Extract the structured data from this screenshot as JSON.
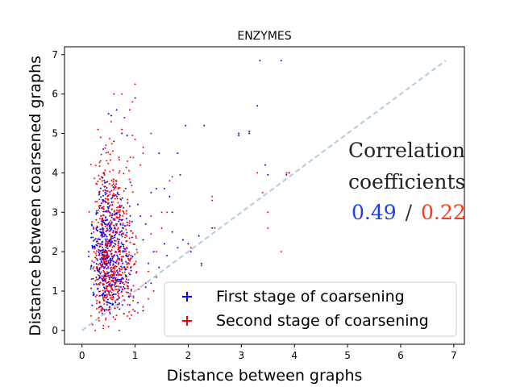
{
  "chart_data": {
    "type": "scatter",
    "title": "ENZYMES",
    "xlabel": "Distance between graphs",
    "ylabel": "Distance between coarsened graphs",
    "xlim": [
      -0.33,
      7.2
    ],
    "ylim": [
      -0.35,
      7.2
    ],
    "x_ticks": [
      0,
      1,
      2,
      3,
      4,
      5,
      6,
      7
    ],
    "y_ticks": [
      0,
      1,
      2,
      3,
      4,
      5,
      6,
      7
    ],
    "grid": false,
    "legend_position": "lower-right",
    "diagonal": {
      "from": [
        0,
        0
      ],
      "to": [
        6.85,
        6.85
      ],
      "color": "#aecbe6",
      "style": "dashed"
    },
    "annotation": {
      "line1": "Correlation",
      "line2": "coefficients",
      "value_first": "0.49",
      "separator": "/",
      "value_second": "0.22"
    },
    "series": [
      {
        "name": "First stage of coarsening",
        "color": "#0000ff",
        "marker": "+",
        "cluster": {
          "count": 520,
          "x_range": [
            0.12,
            1.0
          ],
          "y_range": [
            0.35,
            4.1
          ],
          "x_mode": 0.4,
          "y_mode": 1.7
        },
        "outliers": [
          [
            3.35,
            6.85
          ],
          [
            3.75,
            6.85
          ],
          [
            3.3,
            5.7
          ],
          [
            1.95,
            5.2
          ],
          [
            2.3,
            5.2
          ],
          [
            3.15,
            5.05
          ],
          [
            2.95,
            5.0
          ],
          [
            2.95,
            4.95
          ],
          [
            3.15,
            5.0
          ],
          [
            3.45,
            4.2
          ],
          [
            3.9,
            4.0
          ],
          [
            3.85,
            3.95
          ],
          [
            3.5,
            3.95
          ],
          [
            1.45,
            4.5
          ],
          [
            1.8,
            4.5
          ],
          [
            1.85,
            3.95
          ],
          [
            1.4,
            3.6
          ],
          [
            1.55,
            3.6
          ],
          [
            1.65,
            3.4
          ],
          [
            1.3,
            3.5
          ],
          [
            1.7,
            3.0
          ],
          [
            2.2,
            2.4
          ],
          [
            2.45,
            2.6
          ],
          [
            2.0,
            2.2
          ],
          [
            1.8,
            2.1
          ],
          [
            1.7,
            2.5
          ],
          [
            1.55,
            2.2
          ],
          [
            1.6,
            1.9
          ],
          [
            1.45,
            1.6
          ],
          [
            1.3,
            1.2
          ],
          [
            1.25,
            1.7
          ],
          [
            1.15,
            2.3
          ],
          [
            1.1,
            2.9
          ],
          [
            1.2,
            2.7
          ],
          [
            1.05,
            3.2
          ],
          [
            1.35,
            2.0
          ],
          [
            0.5,
            5.5
          ],
          [
            0.55,
            5.45
          ],
          [
            0.65,
            5.6
          ],
          [
            0.75,
            5.0
          ],
          [
            0.85,
            4.95
          ],
          [
            1.0,
            5.9
          ],
          [
            0.4,
            4.6
          ],
          [
            0.6,
            4.8
          ],
          [
            1.15,
            0.5
          ],
          [
            1.05,
            0.7
          ],
          [
            1.2,
            1.1
          ],
          [
            2.25,
            1.7
          ],
          [
            1.9,
            2.3
          ],
          [
            2.05,
            2.0
          ]
        ]
      },
      {
        "name": "Second stage of coarsening",
        "color": "#ff0000",
        "marker": "+",
        "cluster": {
          "count": 560,
          "x_range": [
            0.12,
            1.1
          ],
          "y_range": [
            0.0,
            4.9
          ],
          "x_mode": 0.45,
          "y_mode": 1.5
        },
        "outliers": [
          [
            1.0,
            6.25
          ],
          [
            0.75,
            6.0
          ],
          [
            0.95,
            5.8
          ],
          [
            0.55,
            5.3
          ],
          [
            0.3,
            5.1
          ],
          [
            0.75,
            5.1
          ],
          [
            1.3,
            5.0
          ],
          [
            0.95,
            4.95
          ],
          [
            1.15,
            4.65
          ],
          [
            1.15,
            4.5
          ],
          [
            3.85,
            4.0
          ],
          [
            3.9,
            4.0
          ],
          [
            3.3,
            4.0
          ],
          [
            3.4,
            3.5
          ],
          [
            3.5,
            3.0
          ],
          [
            3.5,
            2.6
          ],
          [
            3.75,
            2.0
          ],
          [
            2.5,
            2.6
          ],
          [
            2.45,
            3.4
          ],
          [
            2.45,
            3.3
          ],
          [
            1.65,
            3.8
          ],
          [
            1.7,
            3.9
          ],
          [
            1.6,
            3.0
          ],
          [
            1.5,
            3.0
          ],
          [
            1.5,
            2.6
          ],
          [
            1.3,
            2.9
          ],
          [
            1.3,
            2.45
          ],
          [
            1.4,
            2.0
          ],
          [
            1.25,
            1.5
          ],
          [
            1.4,
            1.35
          ],
          [
            1.2,
            1.2
          ],
          [
            1.35,
            1.0
          ],
          [
            1.25,
            0.8
          ],
          [
            1.15,
            0.6
          ],
          [
            2.25,
            1.65
          ],
          [
            2.05,
            2.1
          ],
          [
            0.7,
            0.0
          ],
          [
            0.25,
            0.0
          ],
          [
            0.4,
            0.05
          ],
          [
            0.6,
            6.0
          ],
          [
            0.8,
            5.4
          ],
          [
            0.45,
            4.7
          ],
          [
            0.35,
            4.9
          ],
          [
            1.0,
            4.85
          ],
          [
            0.9,
            5.6
          ],
          [
            1.1,
            4.2
          ],
          [
            0.2,
            0.15
          ],
          [
            0.5,
            0.1
          ],
          [
            0.9,
            0.3
          ],
          [
            1.05,
            0.45
          ]
        ]
      }
    ]
  }
}
